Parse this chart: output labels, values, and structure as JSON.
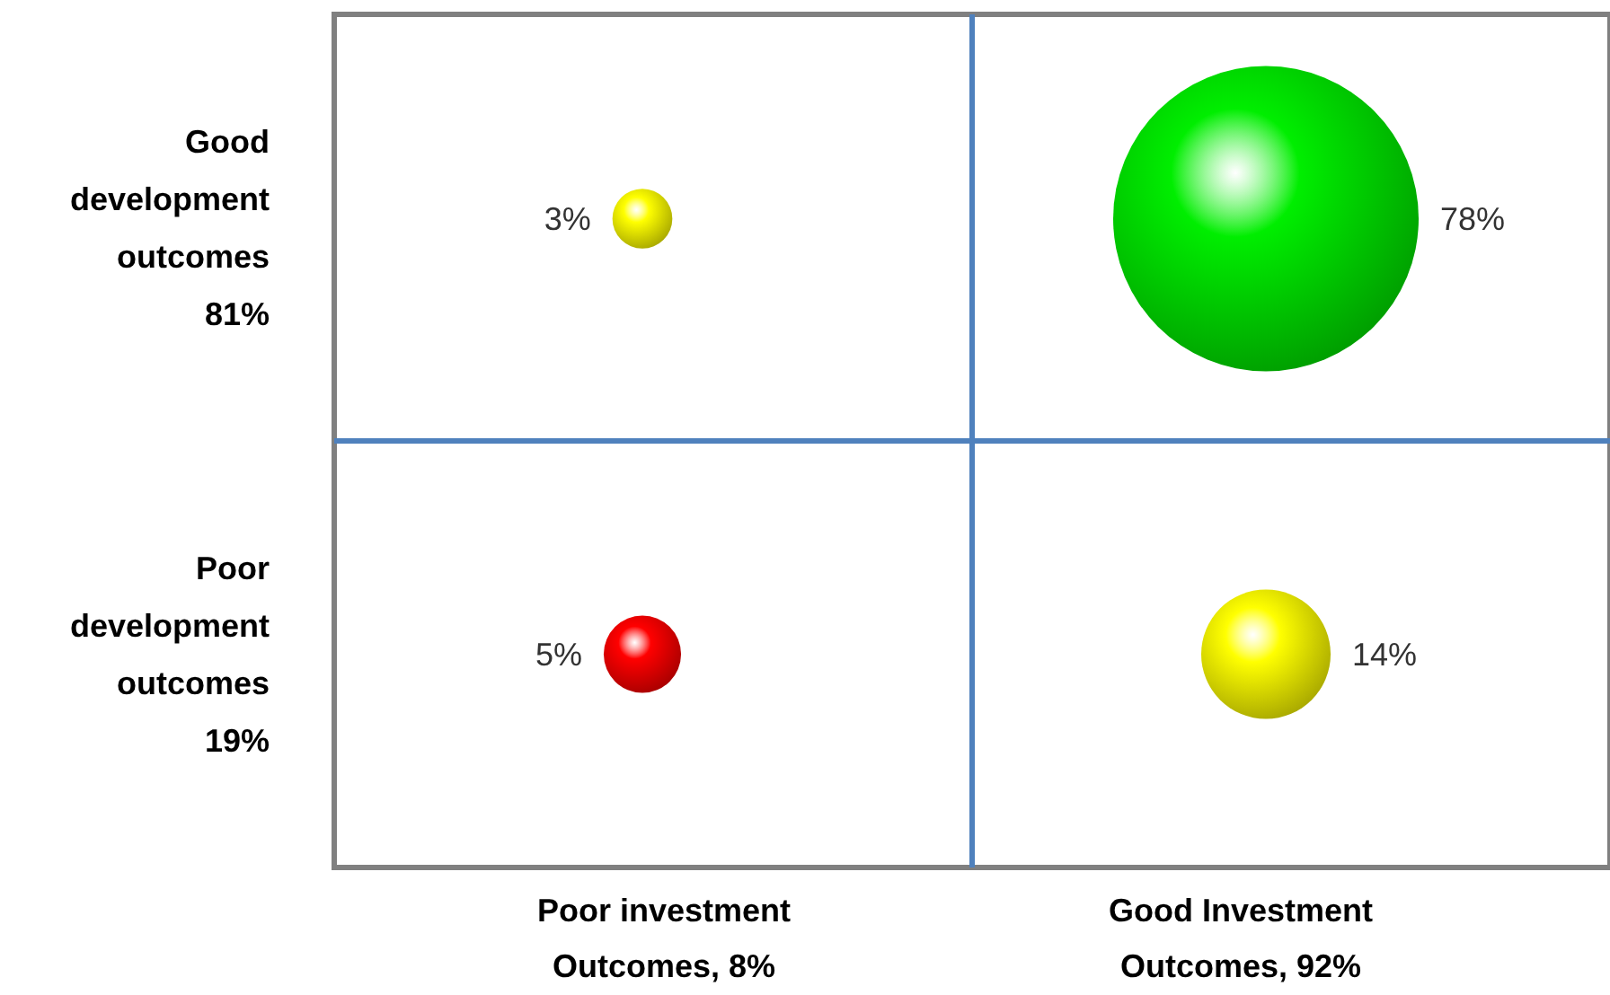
{
  "chart_data": {
    "type": "other",
    "categories": [
      "Poor investment\nOutcomes, 8%",
      "Good Investment\nOutcomes, 92%"
    ],
    "series": [
      {
        "name": "Good\ndevelopment\noutcomes\n81%",
        "values": [
          3,
          78
        ],
        "value_labels": [
          "3%",
          "78%"
        ],
        "colors": [
          "#ffff00",
          "#00ee00"
        ]
      },
      {
        "name": "Poor\ndevelopment\noutcomes\n19%",
        "values": [
          5,
          14
        ],
        "value_labels": [
          "5%",
          "14%"
        ],
        "colors": [
          "#ff0000",
          "#ffff00"
        ]
      }
    ]
  }
}
